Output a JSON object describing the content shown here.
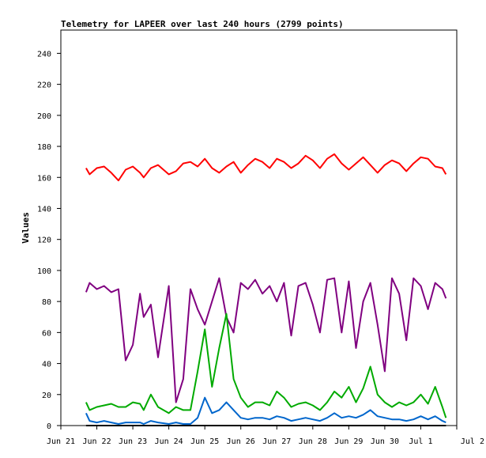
{
  "chart_data": {
    "type": "line",
    "title": "Telemetry for LAPEER over last 240 hours (2799 points)",
    "xlabel": "",
    "ylabel": "Values",
    "ylim": [
      0,
      255
    ],
    "yticks": [
      0,
      20,
      40,
      60,
      80,
      100,
      120,
      140,
      160,
      180,
      200,
      220,
      240
    ],
    "xticks": [
      "Jun 21",
      "Jun 22",
      "Jun 23",
      "Jun 24",
      "Jun 25",
      "Jun 26",
      "Jun 27",
      "Jun 28",
      "Jun 29",
      "Jun 30",
      "Jul 1",
      "Jul 2"
    ],
    "x": [
      0.7,
      0.8,
      1.0,
      1.2,
      1.4,
      1.6,
      1.8,
      2.0,
      2.2,
      2.3,
      2.5,
      2.7,
      3.0,
      3.2,
      3.4,
      3.6,
      3.8,
      4.0,
      4.2,
      4.4,
      4.6,
      4.8,
      5.0,
      5.2,
      5.4,
      5.6,
      5.8,
      6.0,
      6.2,
      6.4,
      6.6,
      6.8,
      7.0,
      7.2,
      7.4,
      7.6,
      7.8,
      8.0,
      8.2,
      8.4,
      8.6,
      8.8,
      9.0,
      9.2,
      9.4,
      9.6,
      9.8,
      10.0,
      10.2,
      10.4,
      10.6,
      10.7
    ],
    "series": [
      {
        "color": "#ff0000",
        "values": [
          166,
          162,
          166,
          167,
          163,
          158,
          165,
          167,
          163,
          160,
          166,
          168,
          162,
          164,
          169,
          170,
          167,
          172,
          166,
          163,
          167,
          170,
          163,
          168,
          172,
          170,
          166,
          172,
          170,
          166,
          169,
          174,
          171,
          166,
          172,
          175,
          169,
          165,
          169,
          173,
          168,
          163,
          168,
          171,
          169,
          164,
          169,
          173,
          172,
          167,
          166,
          162
        ]
      },
      {
        "color": "#800080",
        "values": [
          86,
          92,
          88,
          90,
          86,
          88,
          42,
          52,
          85,
          70,
          78,
          44,
          90,
          15,
          30,
          88,
          75,
          65,
          80,
          95,
          70,
          60,
          92,
          88,
          94,
          85,
          90,
          80,
          92,
          58,
          90,
          92,
          78,
          60,
          94,
          95,
          60,
          93,
          50,
          80,
          92,
          65,
          35,
          95,
          85,
          55,
          95,
          90,
          75,
          92,
          88,
          82
        ]
      },
      {
        "color": "#00aa00",
        "values": [
          15,
          10,
          12,
          13,
          14,
          12,
          12,
          15,
          14,
          10,
          20,
          12,
          8,
          12,
          10,
          10,
          35,
          62,
          25,
          50,
          72,
          30,
          18,
          12,
          15,
          15,
          13,
          22,
          18,
          12,
          14,
          15,
          13,
          10,
          15,
          22,
          18,
          25,
          15,
          24,
          38,
          20,
          15,
          12,
          15,
          13,
          15,
          20,
          14,
          25,
          12,
          5
        ]
      },
      {
        "color": "#0066cc",
        "values": [
          8,
          3,
          2,
          3,
          2,
          1,
          2,
          2,
          2,
          1,
          3,
          2,
          1,
          2,
          1,
          1,
          5,
          18,
          8,
          10,
          15,
          10,
          5,
          4,
          5,
          5,
          4,
          6,
          5,
          3,
          4,
          5,
          4,
          3,
          5,
          8,
          5,
          6,
          5,
          7,
          10,
          6,
          5,
          4,
          4,
          3,
          4,
          6,
          4,
          6,
          3,
          2
        ]
      }
    ]
  }
}
